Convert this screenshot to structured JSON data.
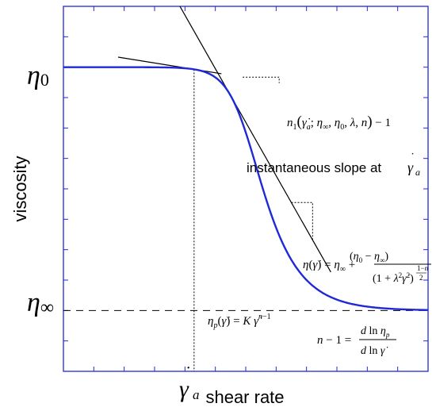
{
  "chart_data": {
    "type": "line",
    "title": "",
    "xlabel": "shear rate",
    "ylabel": "viscosity",
    "y_tick_labels": {
      "eta0": "η0",
      "etainf": "η∞"
    },
    "x_tick_labels": {
      "gamma_a": "γ̇a"
    },
    "model": {
      "eta_inf": 0,
      "eta0": 1,
      "lambda": 1,
      "n": 0.1,
      "x_min": -3,
      "x_max": 3,
      "y_min": -0.25,
      "y_max": 1.25
    },
    "gamma_a": -0.85,
    "series": [
      {
        "kind": "carreau",
        "color": "#1f2ad6"
      },
      {
        "kind": "tangent",
        "color": "#000000"
      },
      {
        "kind": "power-law",
        "color": "#000000"
      }
    ],
    "annotations": {
      "instantaneous_slope": "instantaneous slope at",
      "tangent_slope_formula": "n1(γ̇a; η∞, η0, λ, n) − 1",
      "carreau_formula": "η(γ̇) = η∞ + (η0 − η∞) / (1 + λ²γ̇²)^((1−n)/2)",
      "power_law_formula": "ηp(γ̇) = K γ̇^(n−1)",
      "power_law_slope_formula": "n − 1 = d ln ηp / d ln γ̇"
    },
    "grid": false
  }
}
